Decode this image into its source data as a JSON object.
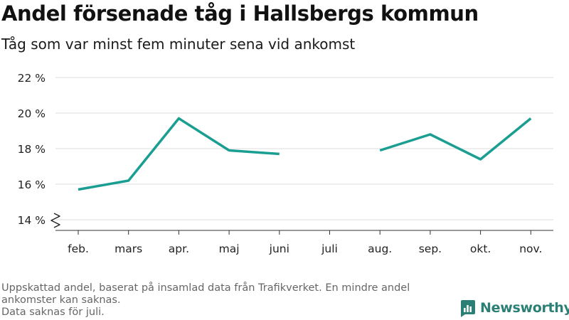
{
  "header": {
    "title": "Andel försenade tåg i Hallsbergs kommun",
    "subtitle": "Tåg som var minst fem minuter sena vid ankomst"
  },
  "chart_data": {
    "type": "line",
    "title": "Andel försenade tåg i Hallsbergs kommun",
    "subtitle": "Tåg som var minst fem minuter sena vid ankomst",
    "xlabel": "",
    "ylabel": "",
    "categories": [
      "feb.",
      "mars",
      "apr.",
      "maj",
      "juni",
      "juli",
      "aug.",
      "sep.",
      "okt.",
      "nov."
    ],
    "series": [
      {
        "values": [
          15.7,
          16.2,
          19.7,
          17.9,
          17.7,
          null,
          17.9,
          18.8,
          17.4,
          19.7
        ]
      }
    ],
    "ylim": [
      14,
      22
    ],
    "yticks": [
      14,
      16,
      18,
      20,
      22
    ],
    "ytick_labels": [
      "14 %",
      "16 %",
      "18 %",
      "20 %",
      "22 %"
    ],
    "axis_break": true,
    "grid": true,
    "legend": "none",
    "line_color": "#1a9e91",
    "grid_color": "#dddddd",
    "axis_color": "#333333"
  },
  "footnotes": [
    "Uppskattad andel, baserat på insamlad data från Trafikverket. En mindre andel ankomster kan saknas.",
    "Data saknas för juli."
  ],
  "brand": {
    "name": "Newsworthy",
    "icon": "newsworthy-logo-icon",
    "color": "#2b7f74"
  }
}
